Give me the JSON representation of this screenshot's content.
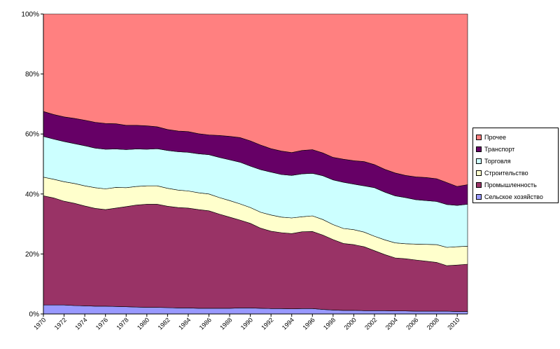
{
  "chart_data": {
    "type": "area",
    "stacked": "percent",
    "x": [
      1970,
      1971,
      1972,
      1973,
      1974,
      1975,
      1976,
      1977,
      1978,
      1979,
      1980,
      1981,
      1982,
      1983,
      1984,
      1985,
      1986,
      1987,
      1988,
      1989,
      1990,
      1991,
      1992,
      1993,
      1994,
      1995,
      1996,
      1997,
      1998,
      1999,
      2000,
      2001,
      2002,
      2003,
      2004,
      2005,
      2006,
      2007,
      2008,
      2009,
      2010,
      2011
    ],
    "x_tick_labels": [
      "1970",
      "1972",
      "1974",
      "1976",
      "1978",
      "1980",
      "1982",
      "1984",
      "1986",
      "1988",
      "1990",
      "1992",
      "1994",
      "1996",
      "1998",
      "2000",
      "2002",
      "2004",
      "2006",
      "2008",
      "2010"
    ],
    "y_tick_labels": [
      "0%",
      "20%",
      "40%",
      "60%",
      "80%",
      "100%"
    ],
    "ylim": [
      0,
      100
    ],
    "grid": false,
    "legend_position": "right",
    "series": [
      {
        "name": "Сельское хозяйство",
        "color": "#9999FF",
        "values": [
          3,
          3,
          3,
          2.8,
          2.7,
          2.6,
          2.6,
          2.5,
          2.4,
          2.3,
          2.2,
          2.2,
          2.1,
          2,
          2,
          1.9,
          1.9,
          1.9,
          1.9,
          2,
          2,
          1.9,
          1.8,
          1.8,
          1.7,
          1.8,
          1.8,
          1.5,
          1.3,
          1.2,
          1.2,
          1.1,
          1.1,
          1.1,
          1,
          1,
          0.9,
          0.9,
          0.9,
          0.9,
          0.8,
          0.8
        ]
      },
      {
        "name": "Промышленность",
        "color": "#993366",
        "values": [
          36.4,
          35.7,
          34.6,
          34.1,
          33.3,
          32.6,
          32.2,
          32.8,
          33.4,
          34,
          34.4,
          34.4,
          33.8,
          33.5,
          33.3,
          32.9,
          32.5,
          31.4,
          30.4,
          29.3,
          28.2,
          26.7,
          25.8,
          25.3,
          25.1,
          25.6,
          25.7,
          24.8,
          23.5,
          22.3,
          21.9,
          21.3,
          20,
          18.7,
          17.7,
          17.4,
          17.1,
          16.7,
          16.3,
          15.2,
          15.5,
          15.8
        ]
      },
      {
        "name": "Строительство",
        "color": "#FFFFCC",
        "values": [
          6.2,
          6.2,
          6.5,
          6.6,
          6.7,
          6.9,
          6.9,
          6.9,
          6.3,
          6.2,
          6.1,
          6.1,
          6,
          5.8,
          5.7,
          5.6,
          5.6,
          5.5,
          5.5,
          5.4,
          5.3,
          5.3,
          5.4,
          5.2,
          5.2,
          5,
          5.2,
          5.2,
          5,
          5,
          5,
          4.9,
          4.8,
          4.9,
          5,
          5,
          5.3,
          5.6,
          5.9,
          6.1,
          6.1,
          6
        ]
      },
      {
        "name": "Торговля",
        "color": "#CCFFFF",
        "values": [
          13.6,
          13.4,
          13.4,
          13.3,
          13.4,
          13.2,
          13.2,
          12.8,
          12.7,
          12.5,
          12.2,
          12.4,
          12.6,
          12.8,
          12.9,
          13,
          13.1,
          13.4,
          13.6,
          13.9,
          13.8,
          14.2,
          14.3,
          14.2,
          14.2,
          14.3,
          14.2,
          14.6,
          14.9,
          15.4,
          15.2,
          15.4,
          16.2,
          15.9,
          15.7,
          15.4,
          14.8,
          14.6,
          14.4,
          14.3,
          13.8,
          14
        ]
      },
      {
        "name": "Транспорт",
        "color": "#660066",
        "values": [
          8.3,
          8.2,
          8.2,
          8.4,
          8.5,
          8.6,
          8.6,
          8.4,
          8.1,
          7.9,
          7.8,
          7.3,
          7,
          6.9,
          6.9,
          6.7,
          6.6,
          7.3,
          7.8,
          8.2,
          8.4,
          8.2,
          7.8,
          7.8,
          7.6,
          7.8,
          7.9,
          7.6,
          7.5,
          7.7,
          7.8,
          8.1,
          7.7,
          7.6,
          7.6,
          7.4,
          7.6,
          7.7,
          7.6,
          7.3,
          6.3,
          6.5
        ]
      },
      {
        "name": "Прочее",
        "color": "#FF8080",
        "values": [
          32.5,
          33.5,
          34.3,
          34.8,
          35.4,
          36.1,
          36.5,
          36.6,
          37.1,
          37.1,
          37.3,
          37.6,
          38.5,
          39,
          39.2,
          39.9,
          40.3,
          40.5,
          40.8,
          41.2,
          42.3,
          43.7,
          44.9,
          45.7,
          46.2,
          45.5,
          45.2,
          46.3,
          47.8,
          48.4,
          48.9,
          49.2,
          50.2,
          51.8,
          53,
          53.8,
          54.3,
          54.5,
          54.9,
          56.2,
          57.5,
          56.9
        ]
      }
    ]
  }
}
